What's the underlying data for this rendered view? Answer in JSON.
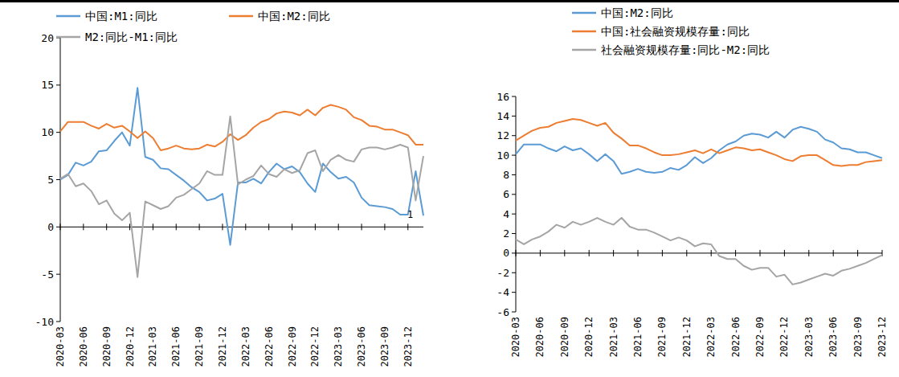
{
  "chart_data": [
    {
      "type": "line",
      "categories": [
        "2020-03",
        null,
        null,
        "2020-06",
        null,
        null,
        "2020-09",
        null,
        null,
        "2020-12",
        null,
        null,
        "2021-03",
        null,
        null,
        "2021-06",
        null,
        null,
        "2021-09",
        null,
        null,
        "2021-12",
        null,
        null,
        "2022-03",
        null,
        null,
        "2022-06",
        null,
        null,
        "2022-09",
        null,
        null,
        "2022-12",
        null,
        null,
        "2023-03",
        null,
        null,
        "2023-06",
        null,
        null,
        "2023-09",
        null,
        null,
        "2023-12",
        null,
        null
      ],
      "series": [
        {
          "name": "中国:M1:同比",
          "color": "#5B9BD5",
          "values": [
            5.0,
            5.5,
            6.8,
            6.5,
            6.9,
            8.0,
            8.1,
            9.1,
            10.0,
            8.6,
            14.7,
            7.4,
            7.1,
            6.2,
            6.1,
            5.5,
            4.9,
            4.2,
            3.7,
            2.8,
            3.0,
            3.5,
            -1.9,
            4.7,
            4.7,
            5.1,
            4.6,
            5.8,
            6.7,
            6.1,
            6.4,
            5.8,
            4.6,
            3.7,
            6.7,
            5.8,
            5.1,
            5.3,
            4.7,
            3.1,
            2.3,
            2.2,
            2.1,
            1.9,
            1.3,
            1.3,
            5.9,
            1.2
          ]
        },
        {
          "name": "中国:M2:同比",
          "color": "#ED7D31",
          "values": [
            10.1,
            11.1,
            11.1,
            11.1,
            10.7,
            10.4,
            10.9,
            10.5,
            10.7,
            10.1,
            9.4,
            10.1,
            9.4,
            8.1,
            8.3,
            8.6,
            8.3,
            8.2,
            8.3,
            8.7,
            8.5,
            9.0,
            9.8,
            9.2,
            9.7,
            10.5,
            11.1,
            11.4,
            12.0,
            12.2,
            12.1,
            11.8,
            12.4,
            11.8,
            12.6,
            12.9,
            12.7,
            12.4,
            11.6,
            11.3,
            10.7,
            10.6,
            10.3,
            10.3,
            10.0,
            9.7,
            8.7,
            8.7
          ]
        },
        {
          "name": "M2:同比-M1:同比",
          "color": "#A5A5A5",
          "values": [
            5.1,
            5.6,
            4.3,
            4.6,
            3.8,
            2.4,
            2.8,
            1.4,
            0.7,
            1.5,
            -5.3,
            2.7,
            2.3,
            1.9,
            2.2,
            3.1,
            3.4,
            4.0,
            4.6,
            5.9,
            5.5,
            5.5,
            11.7,
            4.5,
            5.0,
            5.4,
            6.5,
            5.6,
            5.3,
            6.1,
            5.7,
            6.0,
            7.8,
            8.1,
            5.9,
            7.1,
            7.6,
            7.1,
            6.9,
            8.2,
            8.4,
            8.4,
            8.2,
            8.4,
            8.7,
            8.4,
            2.8,
            7.5
          ]
        }
      ],
      "ylim": [
        -10,
        20
      ],
      "yticks": [
        -10,
        -5,
        0,
        5,
        10,
        15,
        20
      ],
      "grid": false,
      "legend": "top",
      "annotations": [
        {
          "text": "1",
          "y": 1
        }
      ]
    },
    {
      "type": "line",
      "categories": [
        "2020-03",
        null,
        null,
        "2020-06",
        null,
        null,
        "2020-09",
        null,
        null,
        "2020-12",
        null,
        null,
        "2021-03",
        null,
        null,
        "2021-06",
        null,
        null,
        "2021-09",
        null,
        null,
        "2021-12",
        null,
        null,
        "2022-03",
        null,
        null,
        "2022-06",
        null,
        null,
        "2022-09",
        null,
        null,
        "2022-12",
        null,
        null,
        "2023-03",
        null,
        null,
        "2023-06",
        null,
        null,
        "2023-09",
        null,
        null,
        "2023-12"
      ],
      "series": [
        {
          "name": "中国:M2:同比",
          "color": "#5B9BD5",
          "values": [
            10.1,
            11.1,
            11.1,
            11.1,
            10.7,
            10.4,
            10.9,
            10.5,
            10.7,
            10.1,
            9.4,
            10.1,
            9.4,
            8.1,
            8.3,
            8.6,
            8.3,
            8.2,
            8.3,
            8.7,
            8.5,
            9.0,
            9.8,
            9.2,
            9.7,
            10.5,
            11.1,
            11.4,
            12.0,
            12.2,
            12.1,
            11.8,
            12.4,
            11.8,
            12.6,
            12.9,
            12.7,
            12.4,
            11.6,
            11.3,
            10.7,
            10.6,
            10.3,
            10.3,
            10.0,
            9.7
          ]
        },
        {
          "name": "中国:社会融资规模存量:同比",
          "color": "#ED7D31",
          "values": [
            11.5,
            12.0,
            12.5,
            12.8,
            12.9,
            13.3,
            13.5,
            13.7,
            13.6,
            13.3,
            13.0,
            13.3,
            12.3,
            11.7,
            11.0,
            11.0,
            10.7,
            10.3,
            10.0,
            10.0,
            10.1,
            10.3,
            10.5,
            10.2,
            10.6,
            10.2,
            10.5,
            10.8,
            10.7,
            10.5,
            10.6,
            10.3,
            10.0,
            9.6,
            9.4,
            9.9,
            10.0,
            10.0,
            9.5,
            9.0,
            8.9,
            9.0,
            9.0,
            9.3,
            9.4,
            9.5
          ]
        },
        {
          "name": "社会融资规模存量:同比-M2:同比",
          "color": "#A5A5A5",
          "values": [
            1.4,
            0.9,
            1.4,
            1.7,
            2.2,
            2.9,
            2.6,
            3.2,
            2.9,
            3.2,
            3.6,
            3.2,
            2.9,
            3.6,
            2.7,
            2.4,
            2.4,
            2.1,
            1.7,
            1.3,
            1.6,
            1.3,
            0.7,
            1.0,
            0.9,
            -0.3,
            -0.6,
            -0.6,
            -1.3,
            -1.7,
            -1.5,
            -1.5,
            -2.4,
            -2.2,
            -3.2,
            -3.0,
            -2.7,
            -2.4,
            -2.1,
            -2.3,
            -1.8,
            -1.6,
            -1.3,
            -1.0,
            -0.6,
            -0.2
          ]
        }
      ],
      "ylim": [
        -6,
        16
      ],
      "yticks": [
        -6,
        -4,
        -2,
        0,
        2,
        4,
        6,
        8,
        10,
        12,
        14,
        16
      ],
      "grid": false,
      "legend": "top"
    }
  ]
}
